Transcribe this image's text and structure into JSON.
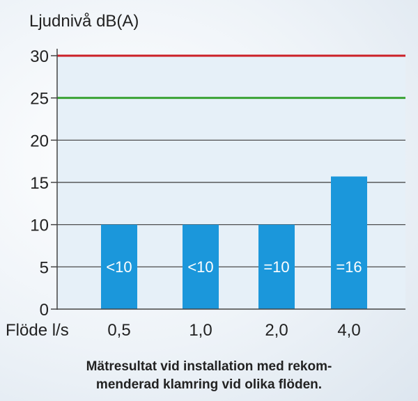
{
  "chart_data": {
    "type": "bar",
    "ylabel": "Ljudnivå dB(A)",
    "xlabel": "Flöde l/s",
    "categories": [
      "0,5",
      "1,0",
      "2,0",
      "4,0"
    ],
    "values": [
      10,
      10,
      10,
      15.7
    ],
    "bar_labels": [
      "<10",
      "<10",
      "=10",
      "=16"
    ],
    "ylim": [
      0,
      30
    ],
    "yticks": [
      "0",
      "5",
      "10",
      "15",
      "20",
      "25",
      "30"
    ],
    "grid": true,
    "reference_lines": [
      {
        "value": 30,
        "color": "#cc2027"
      },
      {
        "value": 25,
        "color": "#3aa335"
      }
    ],
    "bar_color": "#1b97db"
  },
  "caption": {
    "line1": "Mätresultat vid installation med rekom-",
    "line2": "menderad klamring vid olika flöden."
  }
}
